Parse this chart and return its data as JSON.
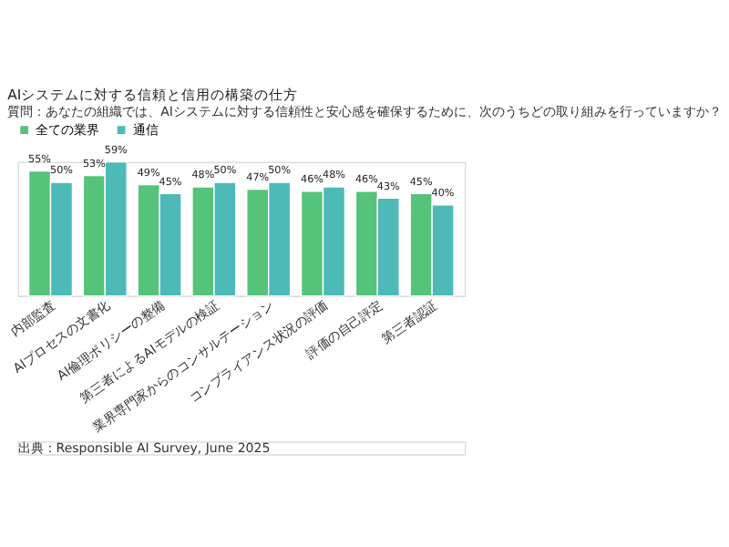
{
  "chart_data": {
    "type": "bar",
    "title": "AIシステムに対する信頼と信用の構築の仕方",
    "subtitle": "質問：あなたの組織では、AIシステムに対する信頼性と安心感を確保するために、次のうちどの取り組みを行っていますか？",
    "categories": [
      "内部監査",
      "AIプロセスの文書化",
      "AI倫理ポリシーの整備",
      "第三者によるAIモデルの検証",
      "業界専門家からのコンサルテーション",
      "コンプライアンス状況の評価",
      "評価の自己評定",
      "第三者認証"
    ],
    "series": [
      {
        "name": "全ての業界",
        "color": "#55c37a",
        "values": [
          55,
          53,
          49,
          48,
          47,
          46,
          46,
          45
        ],
        "value_labels": [
          "55%",
          "53%",
          "49%",
          "48%",
          "47%",
          "46%",
          "46%",
          "45%"
        ]
      },
      {
        "name": "通信",
        "color": "#4dbab8",
        "values": [
          50,
          59,
          45,
          50,
          50,
          48,
          43,
          40
        ],
        "value_labels": [
          "50%",
          "59%",
          "45%",
          "50%",
          "50%",
          "48%",
          "43%",
          "40%"
        ]
      }
    ],
    "legend": "top left",
    "grid": false,
    "annotations": [
      "出典：Responsible AI Survey, June 2025"
    ]
  }
}
